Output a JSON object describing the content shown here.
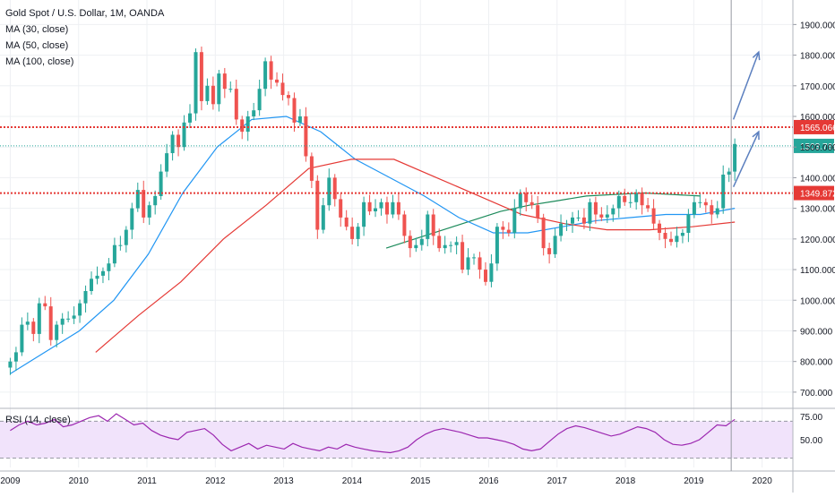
{
  "legend": {
    "title": "Gold Spot / U.S. Dollar, 1M, OANDA",
    "ma30": "MA (30, close)",
    "ma50": "MA (50, close)",
    "ma100": "MA (100, close)"
  },
  "rsi_legend": "RSI (14, close)",
  "colors": {
    "up": "#26a69a",
    "down": "#ef5350",
    "ma30": "#1b8a5a",
    "ma50": "#2196f3",
    "ma100": "#e53935",
    "level": "#e53935",
    "current": "#26a69a",
    "rsi": "#9c27b0",
    "rsi_band": "#f1e3fb",
    "arrow": "#5b7fbf"
  },
  "chart_data": [
    {
      "type": "candlestick",
      "title": "Gold Spot / U.S. Dollar, 1M, OANDA",
      "x_ticks": [
        "2009",
        "2010",
        "2011",
        "2012",
        "2013",
        "2014",
        "2015",
        "2016",
        "2017",
        "2018",
        "2019",
        "2020"
      ],
      "y_ticks": [
        "700.000",
        "800.000",
        "900.000",
        "1000.000",
        "1100.000",
        "1200.000",
        "1300.000",
        "1400.000",
        "1500.000",
        "1600.000",
        "1700.000",
        "1800.000",
        "1900.000"
      ],
      "ylim": [
        650,
        1980
      ],
      "xlim": [
        2008.85,
        2020.45
      ],
      "grid": true,
      "price_labels": [
        {
          "text": "1565.066",
          "value": 1565.066,
          "kind": "resistance"
        },
        {
          "text": "1503.765",
          "value": 1503.765,
          "kind": "current"
        },
        {
          "text": "1349.872",
          "value": 1349.872,
          "kind": "support"
        }
      ],
      "closes": [
        800,
        830,
        920,
        930,
        890,
        990,
        980,
        870,
        920,
        940,
        940,
        950,
        990,
        1030,
        1070,
        1080,
        1095,
        1120,
        1180,
        1180,
        1230,
        1300,
        1360,
        1270,
        1310,
        1340,
        1420,
        1480,
        1540,
        1500,
        1580,
        1610,
        1810,
        1650,
        1700,
        1640,
        1740,
        1690,
        1690,
        1590,
        1550,
        1600,
        1620,
        1690,
        1780,
        1720,
        1710,
        1670,
        1660,
        1580,
        1600,
        1470,
        1390,
        1230,
        1310,
        1400,
        1330,
        1270,
        1240,
        1200,
        1240,
        1320,
        1290,
        1300,
        1320,
        1280,
        1320,
        1280,
        1210,
        1170,
        1180,
        1200,
        1280,
        1210,
        1170,
        1180,
        1180,
        1190,
        1100,
        1140,
        1140,
        1100,
        1060,
        1120,
        1240,
        1230,
        1220,
        1300,
        1350,
        1320,
        1310,
        1270,
        1170,
        1150,
        1210,
        1250,
        1250,
        1270,
        1270,
        1250,
        1320,
        1280,
        1270,
        1280,
        1300,
        1340,
        1320,
        1320,
        1350,
        1310,
        1300,
        1250,
        1220,
        1200,
        1190,
        1210,
        1220,
        1280,
        1320,
        1320,
        1310,
        1280,
        1300,
        1410,
        1420,
        1510
      ],
      "ma_a": {
        "name": "MA (30, close)",
        "from": 2014.5,
        "to": 2019.1,
        "values": [
          1170,
          1200,
          1230,
          1260,
          1290,
          1310,
          1325,
          1340,
          1345,
          1350,
          1345,
          1340
        ]
      },
      "ma_b": {
        "name": "MA (50, close)",
        "from": 2009.0,
        "to": 2019.6,
        "values": [
          760,
          830,
          900,
          1000,
          1150,
          1350,
          1500,
          1590,
          1600,
          1550,
          1460,
          1400,
          1340,
          1270,
          1220,
          1220,
          1240,
          1260,
          1270,
          1280,
          1280,
          1300
        ]
      },
      "ma_c": {
        "name": "MA (100, close)",
        "from": 2010.25,
        "to": 2019.6,
        "values": [
          830,
          950,
          1060,
          1200,
          1310,
          1430,
          1460,
          1460,
          1400,
          1340,
          1280,
          1250,
          1230,
          1230,
          1240,
          1255
        ]
      },
      "projection_arrows": [
        {
          "from": [
            2019.58,
            1590
          ],
          "to": [
            2019.95,
            1810
          ]
        },
        {
          "from": [
            2019.58,
            1370
          ],
          "to": [
            2019.95,
            1550
          ]
        }
      ]
    },
    {
      "type": "line",
      "title": "RSI (14, close)",
      "y_ticks": [
        "75.00",
        "50.00"
      ],
      "ylim": [
        20,
        82
      ],
      "band": [
        30,
        70
      ],
      "values": [
        60,
        66,
        70,
        66,
        68,
        72,
        64,
        66,
        70,
        74,
        76,
        70,
        78,
        72,
        66,
        68,
        60,
        55,
        52,
        50,
        58,
        60,
        62,
        55,
        45,
        38,
        42,
        46,
        40,
        44,
        42,
        40,
        46,
        42,
        40,
        38,
        42,
        40,
        45,
        42,
        40,
        38,
        37,
        36,
        38,
        42,
        50,
        56,
        60,
        62,
        60,
        58,
        55,
        52,
        52,
        50,
        48,
        45,
        40,
        38,
        40,
        48,
        56,
        62,
        65,
        63,
        60,
        57,
        54,
        56,
        60,
        64,
        62,
        58,
        50,
        45,
        44,
        46,
        50,
        58,
        66,
        65,
        72
      ]
    }
  ]
}
